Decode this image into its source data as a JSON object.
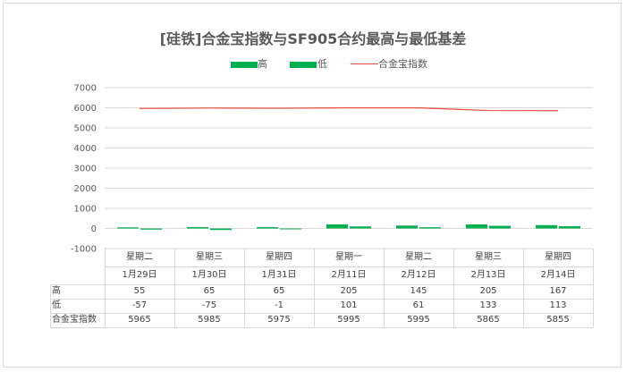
{
  "colors": {
    "high": "#00b050",
    "low": "#00b050",
    "index_line": "#e84a3c",
    "grid": "#d9d9d9",
    "axis_text": "#595959"
  },
  "chart_data": {
    "type": "bar",
    "title": "[硅铁]合金宝指数与SF905合约最高与最低基差",
    "categories": [
      {
        "weekday": "星期二",
        "date": "1月29日"
      },
      {
        "weekday": "星期三",
        "date": "1月30日"
      },
      {
        "weekday": "星期四",
        "date": "1月31日"
      },
      {
        "weekday": "星期一",
        "date": "2月11日"
      },
      {
        "weekday": "星期二",
        "date": "2月12日"
      },
      {
        "weekday": "星期三",
        "date": "2月13日"
      },
      {
        "weekday": "星期四",
        "date": "2月14日"
      }
    ],
    "series": [
      {
        "name": "高",
        "kind": "bar",
        "values": [
          55,
          65,
          65,
          205,
          145,
          205,
          167
        ]
      },
      {
        "name": "低",
        "kind": "bar",
        "values": [
          -57,
          -75,
          -1,
          101,
          61,
          133,
          113
        ]
      },
      {
        "name": "合金宝指数",
        "kind": "line",
        "values": [
          5965,
          5985,
          5975,
          5995,
          5995,
          5865,
          5855
        ]
      }
    ],
    "yticks": [
      "7000",
      "6000",
      "5000",
      "4000",
      "3000",
      "2000",
      "1000",
      "0",
      "-1000"
    ],
    "ylim": [
      -1000,
      7000
    ],
    "grid": true,
    "legend_position": "top",
    "data_table": true
  }
}
